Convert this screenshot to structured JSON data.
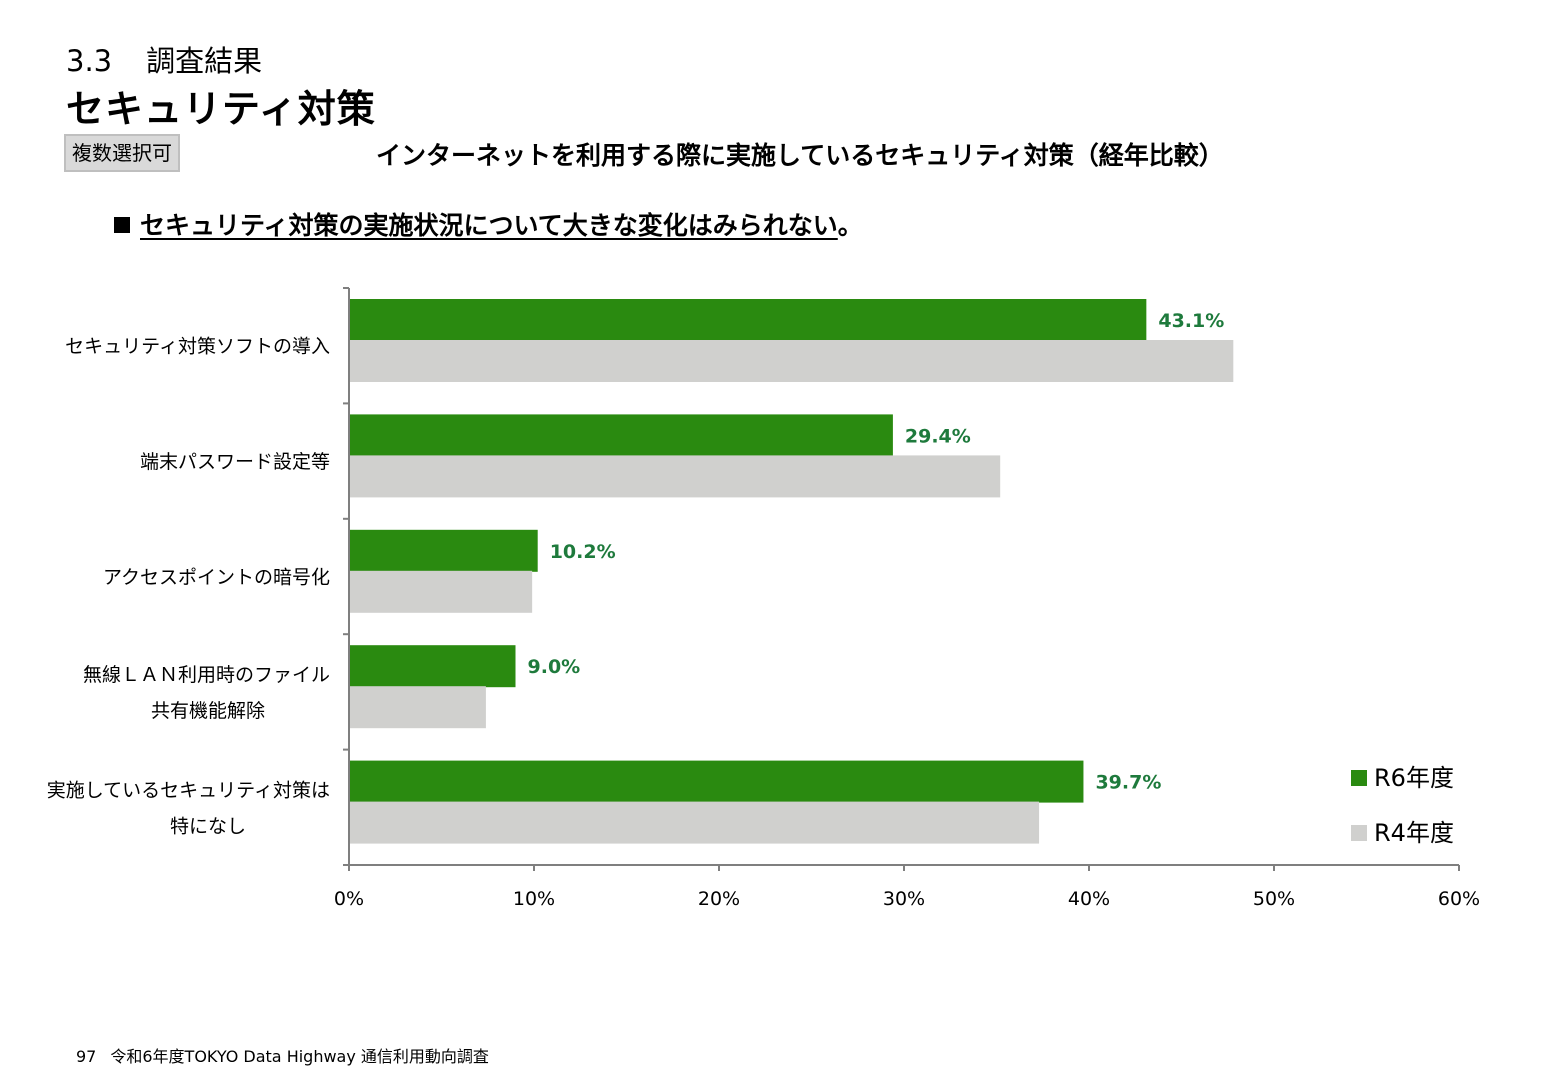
{
  "header": {
    "section_number": "3.3",
    "section_label": "調査結果",
    "page_title": "セキュリティ対策",
    "tag": "複数選択可"
  },
  "chart_title": "インターネットを利用する際に実施しているセキュリティ対策（経年比較）",
  "headline": {
    "text": "セキュリティ対策の実施状況について大きな変化はみられない",
    "end": "。"
  },
  "footer": {
    "page": "97",
    "source": "令和6年度TOKYO Data Highway 通信利用動向調査"
  },
  "colors": {
    "r6": "#2a8a10",
    "r4": "#d0d0ce",
    "label": "#1e7a3c",
    "axis": "#7f7f7f"
  },
  "chart_data": {
    "type": "bar",
    "orientation": "horizontal",
    "categories": [
      [
        "セキュリティ対策ソフトの導入"
      ],
      [
        "端末パスワード設定等"
      ],
      [
        "アクセスポイントの暗号化"
      ],
      [
        "無線ＬＡＮ利用時のファイル",
        "共有機能解除"
      ],
      [
        "実施しているセキュリティ対策は",
        "特になし"
      ]
    ],
    "series": [
      {
        "name": "R6年度",
        "values": [
          43.1,
          29.4,
          10.2,
          9.0,
          39.7
        ],
        "labels": [
          "43.1%",
          "29.4%",
          "10.2%",
          "9.0%",
          "39.7%"
        ]
      },
      {
        "name": "R4年度",
        "values": [
          47.8,
          35.2,
          9.9,
          7.4,
          37.3
        ]
      }
    ],
    "xlim": [
      0,
      60
    ],
    "xticks": [
      "0%",
      "10%",
      "20%",
      "30%",
      "40%",
      "50%",
      "60%"
    ],
    "legend": "bottom-right",
    "grid": false
  }
}
